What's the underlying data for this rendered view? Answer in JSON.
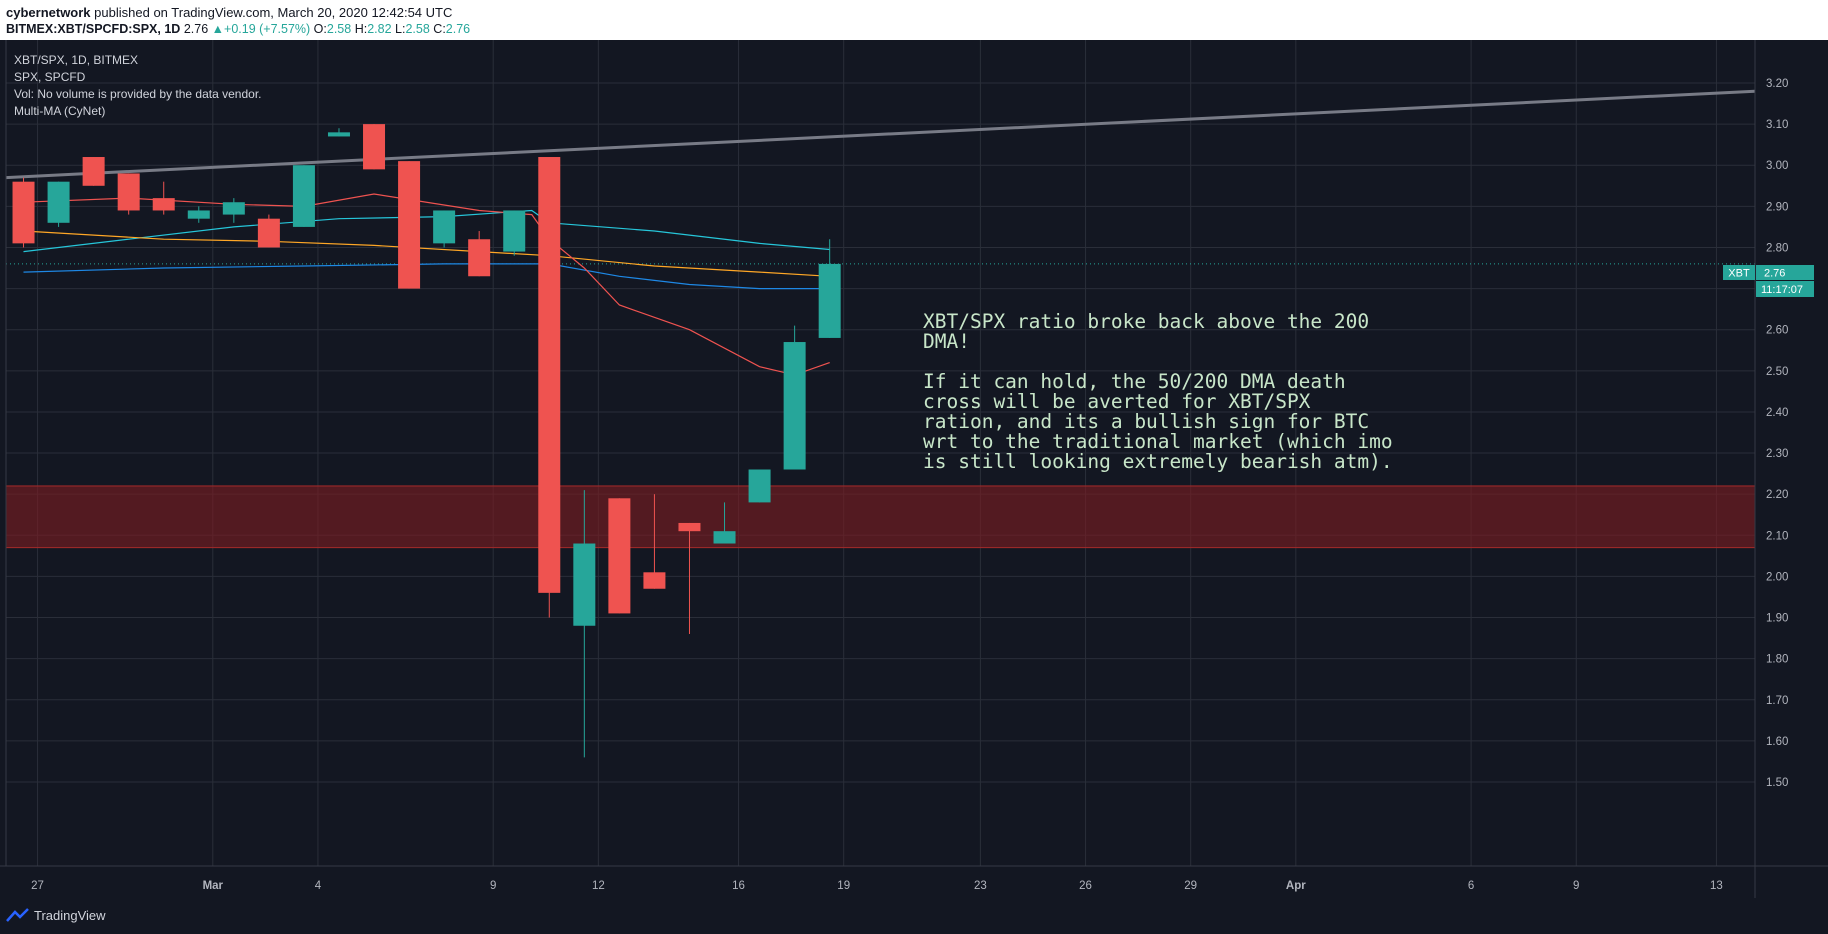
{
  "header": {
    "author": "cybernetwork",
    "published_text": "published on TradingView.com, March 20, 2020 12:42:54 UTC",
    "symbol": "BITMEX:XBT/SPCFD:SPX, 1D",
    "last": "2.76",
    "change": "+0.19 (+7.57%)",
    "o_label": "O:",
    "o_value": "2.58",
    "h_label": "H:",
    "h_value": "2.82",
    "l_label": "L:",
    "l_value": "2.58",
    "c_label": "C:",
    "c_value": "2.76"
  },
  "legend": {
    "line1": "XBT/SPX, 1D, BITMEX",
    "line2": "SPX, SPCFD",
    "line3": "Vol: No volume is provided by the data vendor.",
    "line4": "Multi-MA (CyNet)"
  },
  "annotation": {
    "text": "XBT/SPX ratio broke back above the 200 DMA!\n\nIf it can hold, the 50/200 DMA death cross will be averted for XBT/SPX ration, and its a bullish sign for BTC wrt to the traditional market (which imo is still looking extremely bearish atm)."
  },
  "price_tags": {
    "symbol_tag": "XBT",
    "price_tag": "2.76",
    "countdown_tag": "11:17:07"
  },
  "footer": {
    "brand": "TradingView"
  },
  "colors": {
    "background": "#131722",
    "up": "#26a69a",
    "down": "#ef5350",
    "ma_teal": "#26c6da",
    "ma_orange": "#ffa726",
    "ma_blue": "#1e88e5",
    "ma_red": "#ef5350",
    "trendline": "#787b86",
    "support_zone": "#7f1d22"
  },
  "chart_data": {
    "type": "candlestick",
    "y_ticks": [
      "1.50",
      "1.60",
      "1.70",
      "1.80",
      "1.90",
      "2.00",
      "2.10",
      "2.20",
      "2.30",
      "2.40",
      "2.50",
      "2.60",
      "2.70",
      "2.80",
      "2.90",
      "3.00",
      "3.10",
      "3.20"
    ],
    "ylim": [
      1.4,
      3.27
    ],
    "x_ticks": [
      "27",
      "Mar",
      "4",
      "9",
      "12",
      "16",
      "19",
      "23",
      "26",
      "29",
      "Apr",
      "6",
      "9",
      "13"
    ],
    "x_tick_days": [
      -0.6,
      4.4,
      7.4,
      12.4,
      15.4,
      19.4,
      22.4,
      26.3,
      29.3,
      32.3,
      35.3,
      40.3,
      43.3,
      47.3
    ],
    "xlim": [
      -1.5,
      48.4
    ],
    "candles": [
      {
        "d": -1,
        "o": 2.96,
        "h": 2.97,
        "l": 2.8,
        "c": 2.81
      },
      {
        "d": 0,
        "o": 2.86,
        "h": 2.96,
        "l": 2.85,
        "c": 2.96
      },
      {
        "d": 1,
        "o": 3.02,
        "h": 3.02,
        "l": 2.95,
        "c": 2.95
      },
      {
        "d": 2,
        "o": 2.98,
        "h": 2.98,
        "l": 2.88,
        "c": 2.89
      },
      {
        "d": 3,
        "o": 2.92,
        "h": 2.96,
        "l": 2.88,
        "c": 2.89
      },
      {
        "d": 4,
        "o": 2.87,
        "h": 2.9,
        "l": 2.86,
        "c": 2.89
      },
      {
        "d": 5,
        "o": 2.88,
        "h": 2.92,
        "l": 2.86,
        "c": 2.91
      },
      {
        "d": 6,
        "o": 2.87,
        "h": 2.88,
        "l": 2.8,
        "c": 2.8
      },
      {
        "d": 7,
        "o": 2.85,
        "h": 3.0,
        "l": 2.85,
        "c": 3.0
      },
      {
        "d": 8,
        "o": 3.07,
        "h": 3.09,
        "l": 3.07,
        "c": 3.08
      },
      {
        "d": 9,
        "o": 3.1,
        "h": 3.1,
        "l": 2.99,
        "c": 2.99
      },
      {
        "d": 10,
        "o": 3.01,
        "h": 3.01,
        "l": 2.7,
        "c": 2.7
      },
      {
        "d": 11,
        "o": 2.81,
        "h": 2.89,
        "l": 2.8,
        "c": 2.89
      },
      {
        "d": 12,
        "o": 2.82,
        "h": 2.84,
        "l": 2.73,
        "c": 2.73
      },
      {
        "d": 13,
        "o": 2.79,
        "h": 2.89,
        "l": 2.78,
        "c": 2.89
      },
      {
        "d": 14,
        "o": 3.02,
        "h": 3.02,
        "l": 1.9,
        "c": 1.96
      },
      {
        "d": 15,
        "o": 1.88,
        "h": 2.21,
        "l": 1.56,
        "c": 2.08
      },
      {
        "d": 16,
        "o": 2.19,
        "h": 2.19,
        "l": 1.91,
        "c": 1.91
      },
      {
        "d": 17,
        "o": 2.01,
        "h": 2.2,
        "l": 1.97,
        "c": 1.97
      },
      {
        "d": 18,
        "o": 2.13,
        "h": 2.13,
        "l": 1.86,
        "c": 2.11
      },
      {
        "d": 19,
        "o": 2.08,
        "h": 2.18,
        "l": 2.08,
        "c": 2.11
      },
      {
        "d": 20,
        "o": 2.18,
        "h": 2.26,
        "l": 2.18,
        "c": 2.26
      },
      {
        "d": 21,
        "o": 2.26,
        "h": 2.61,
        "l": 2.26,
        "c": 2.57
      },
      {
        "d": 22,
        "o": 2.58,
        "h": 2.82,
        "l": 2.58,
        "c": 2.76
      }
    ],
    "ma_series": [
      {
        "color": "#26c6da",
        "points": [
          [
            -1,
            2.79
          ],
          [
            2,
            2.82
          ],
          [
            5,
            2.85
          ],
          [
            8,
            2.87
          ],
          [
            11,
            2.875
          ],
          [
            13.5,
            2.89
          ],
          [
            14,
            2.86
          ],
          [
            17,
            2.84
          ],
          [
            20,
            2.81
          ],
          [
            22,
            2.795
          ]
        ]
      },
      {
        "color": "#ffa726",
        "points": [
          [
            -1,
            2.84
          ],
          [
            3,
            2.82
          ],
          [
            6,
            2.815
          ],
          [
            9,
            2.805
          ],
          [
            12,
            2.79
          ],
          [
            14,
            2.78
          ],
          [
            17,
            2.755
          ],
          [
            20,
            2.74
          ],
          [
            22,
            2.73
          ]
        ]
      },
      {
        "color": "#1e88e5",
        "points": [
          [
            -1,
            2.74
          ],
          [
            3,
            2.75
          ],
          [
            7,
            2.755
          ],
          [
            11,
            2.76
          ],
          [
            14,
            2.76
          ],
          [
            16,
            2.73
          ],
          [
            18,
            2.71
          ],
          [
            20,
            2.7
          ],
          [
            22,
            2.7
          ]
        ]
      },
      {
        "color": "#ef5350",
        "points": [
          [
            -1,
            2.91
          ],
          [
            2,
            2.92
          ],
          [
            5,
            2.905
          ],
          [
            7,
            2.9
          ],
          [
            9,
            2.93
          ],
          [
            12,
            2.89
          ],
          [
            13.5,
            2.88
          ],
          [
            14,
            2.82
          ],
          [
            15,
            2.75
          ],
          [
            16,
            2.66
          ],
          [
            18,
            2.6
          ],
          [
            20,
            2.51
          ],
          [
            21,
            2.49
          ],
          [
            22,
            2.52
          ]
        ]
      }
    ],
    "trendline": {
      "color": "#787b86",
      "from": [
        -1.5,
        2.97
      ],
      "to": [
        48.4,
        3.18
      ]
    },
    "zone": {
      "top": 2.22,
      "bottom": 2.07,
      "color": "#7f1d22"
    },
    "last_price": 2.76
  }
}
